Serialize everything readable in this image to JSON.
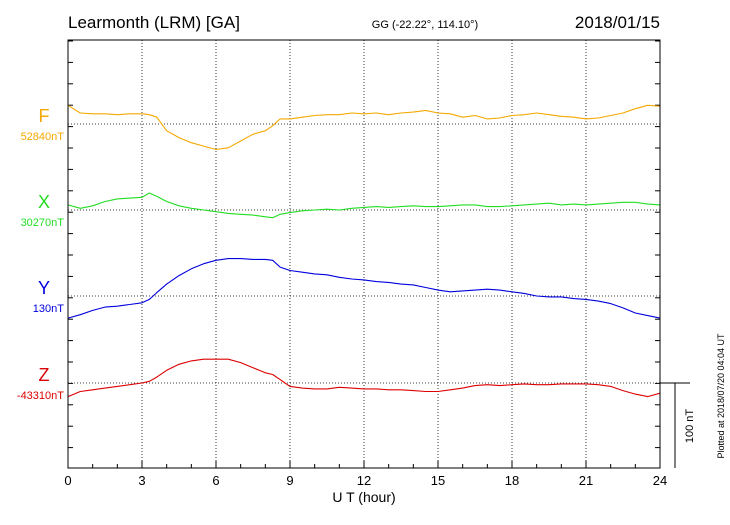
{
  "header": {
    "station": "Learmonth (LRM)  [GA]",
    "coords": "GG (-22.22°, 114.10°)",
    "date": "2018/01/15"
  },
  "side_note": "Plotted at 2018/07/20 04:04 UT",
  "scale_label": "100 nT",
  "chart_data": {
    "type": "line",
    "xlabel": "U T (hour)",
    "xlim": [
      0,
      24
    ],
    "xticks": [
      0,
      3,
      6,
      9,
      12,
      15,
      18,
      21,
      24
    ],
    "xtick_labels": [
      "0",
      "3",
      "6",
      "9",
      "12",
      "15",
      "18",
      "21",
      "24"
    ],
    "yunit": "nT",
    "scale_bar_nT": 100,
    "grid": true,
    "series": [
      {
        "name": "F",
        "baseline_label": "52840nT",
        "color": "#F5A800",
        "baseline": 52840,
        "x": [
          0,
          0.5,
          1,
          1.5,
          2,
          2.5,
          3,
          3.3,
          3.6,
          4,
          4.5,
          5,
          5.5,
          6,
          6.5,
          7,
          7.5,
          8,
          8.3,
          8.6,
          9,
          9.5,
          10,
          10.5,
          11,
          11.5,
          12,
          12.5,
          13,
          13.5,
          14,
          14.5,
          15,
          15.5,
          16,
          16.5,
          17,
          17.5,
          18,
          18.5,
          19,
          19.5,
          20,
          20.5,
          21,
          21.5,
          22,
          22.5,
          23,
          23.5,
          24
        ],
        "y": [
          52862,
          52853,
          52852,
          52852,
          52851,
          52852,
          52852,
          52851,
          52848,
          52832,
          52824,
          52818,
          52814,
          52810,
          52812,
          52820,
          52828,
          52832,
          52838,
          52846,
          52846,
          52848,
          52850,
          52851,
          52851,
          52853,
          52852,
          52853,
          52851,
          52853,
          52854,
          52856,
          52853,
          52852,
          52848,
          52850,
          52846,
          52847,
          52850,
          52851,
          52853,
          52851,
          52849,
          52848,
          52846,
          52847,
          52850,
          52853,
          52858,
          52862,
          52861
        ]
      },
      {
        "name": "X",
        "baseline_label": "30270nT",
        "color": "#22DD22",
        "baseline": 30270,
        "x": [
          0,
          0.5,
          1,
          1.5,
          2,
          2.5,
          3,
          3.3,
          3.6,
          4,
          4.5,
          5,
          5.5,
          6,
          6.5,
          7,
          7.5,
          8,
          8.3,
          8.6,
          9,
          9.5,
          10,
          10.5,
          11,
          11.5,
          12,
          12.5,
          13,
          13.5,
          14,
          14.5,
          15,
          15.5,
          16,
          16.5,
          17,
          17.5,
          18,
          18.5,
          19,
          19.5,
          20,
          20.5,
          21,
          21.5,
          22,
          22.5,
          23,
          23.5,
          24
        ],
        "y": [
          30276,
          30272,
          30275,
          30280,
          30283,
          30284,
          30285,
          30290,
          30286,
          30280,
          30275,
          30272,
          30270,
          30268,
          30266,
          30265,
          30264,
          30262,
          30261,
          30265,
          30267,
          30269,
          30270,
          30271,
          30270,
          30272,
          30273,
          30274,
          30273,
          30274,
          30275,
          30274,
          30274,
          30275,
          30276,
          30276,
          30274,
          30274,
          30275,
          30276,
          30277,
          30278,
          30276,
          30277,
          30276,
          30277,
          30278,
          30279,
          30279,
          30277,
          30276
        ]
      },
      {
        "name": "Y",
        "baseline_label": "130nT",
        "color": "#0000DD",
        "baseline": 130,
        "x": [
          0,
          0.5,
          1,
          1.5,
          2,
          2.5,
          3,
          3.3,
          3.6,
          4,
          4.5,
          5,
          5.5,
          6,
          6.5,
          7,
          7.5,
          8,
          8.3,
          8.6,
          9,
          9.5,
          10,
          10.5,
          11,
          11.5,
          12,
          12.5,
          13,
          13.5,
          14,
          14.5,
          15,
          15.5,
          16,
          16.5,
          17,
          17.5,
          18,
          18.5,
          19,
          19.5,
          20,
          20.5,
          21,
          21.5,
          22,
          22.5,
          23,
          23.5,
          24
        ],
        "y": [
          104,
          108,
          113,
          117,
          118,
          120,
          122,
          126,
          134,
          144,
          154,
          162,
          168,
          172,
          174,
          174,
          173,
          173,
          172,
          164,
          160,
          158,
          156,
          155,
          152,
          150,
          149,
          147,
          146,
          144,
          143,
          140,
          137,
          135,
          136,
          137,
          138,
          137,
          135,
          133,
          130,
          129,
          129,
          127,
          126,
          124,
          121,
          116,
          110,
          107,
          104
        ]
      },
      {
        "name": "Z",
        "baseline_label": "-43310nT",
        "color": "#DD0000",
        "baseline": -43310,
        "x": [
          0,
          0.5,
          1,
          1.5,
          2,
          2.5,
          3,
          3.3,
          3.6,
          4,
          4.5,
          5,
          5.5,
          6,
          6.5,
          7,
          7.5,
          8,
          8.3,
          8.6,
          9,
          9.5,
          10,
          10.5,
          11,
          11.5,
          12,
          12.5,
          13,
          13.5,
          14,
          14.5,
          15,
          15.5,
          16,
          16.5,
          17,
          17.5,
          18,
          18.5,
          19,
          19.5,
          20,
          20.5,
          21,
          21.5,
          22,
          22.5,
          23,
          23.5,
          24
        ],
        "y": [
          -43326,
          -43320,
          -43318,
          -43316,
          -43314,
          -43312,
          -43310,
          -43308,
          -43303,
          -43295,
          -43288,
          -43284,
          -43282,
          -43282,
          -43282,
          -43286,
          -43292,
          -43298,
          -43300,
          -43306,
          -43314,
          -43316,
          -43317,
          -43317,
          -43315,
          -43316,
          -43317,
          -43317,
          -43318,
          -43318,
          -43319,
          -43320,
          -43320,
          -43318,
          -43316,
          -43313,
          -43312,
          -43313,
          -43312,
          -43311,
          -43312,
          -43312,
          -43311,
          -43311,
          -43311,
          -43312,
          -43314,
          -43319,
          -43323,
          -43326,
          -43322
        ]
      }
    ]
  }
}
